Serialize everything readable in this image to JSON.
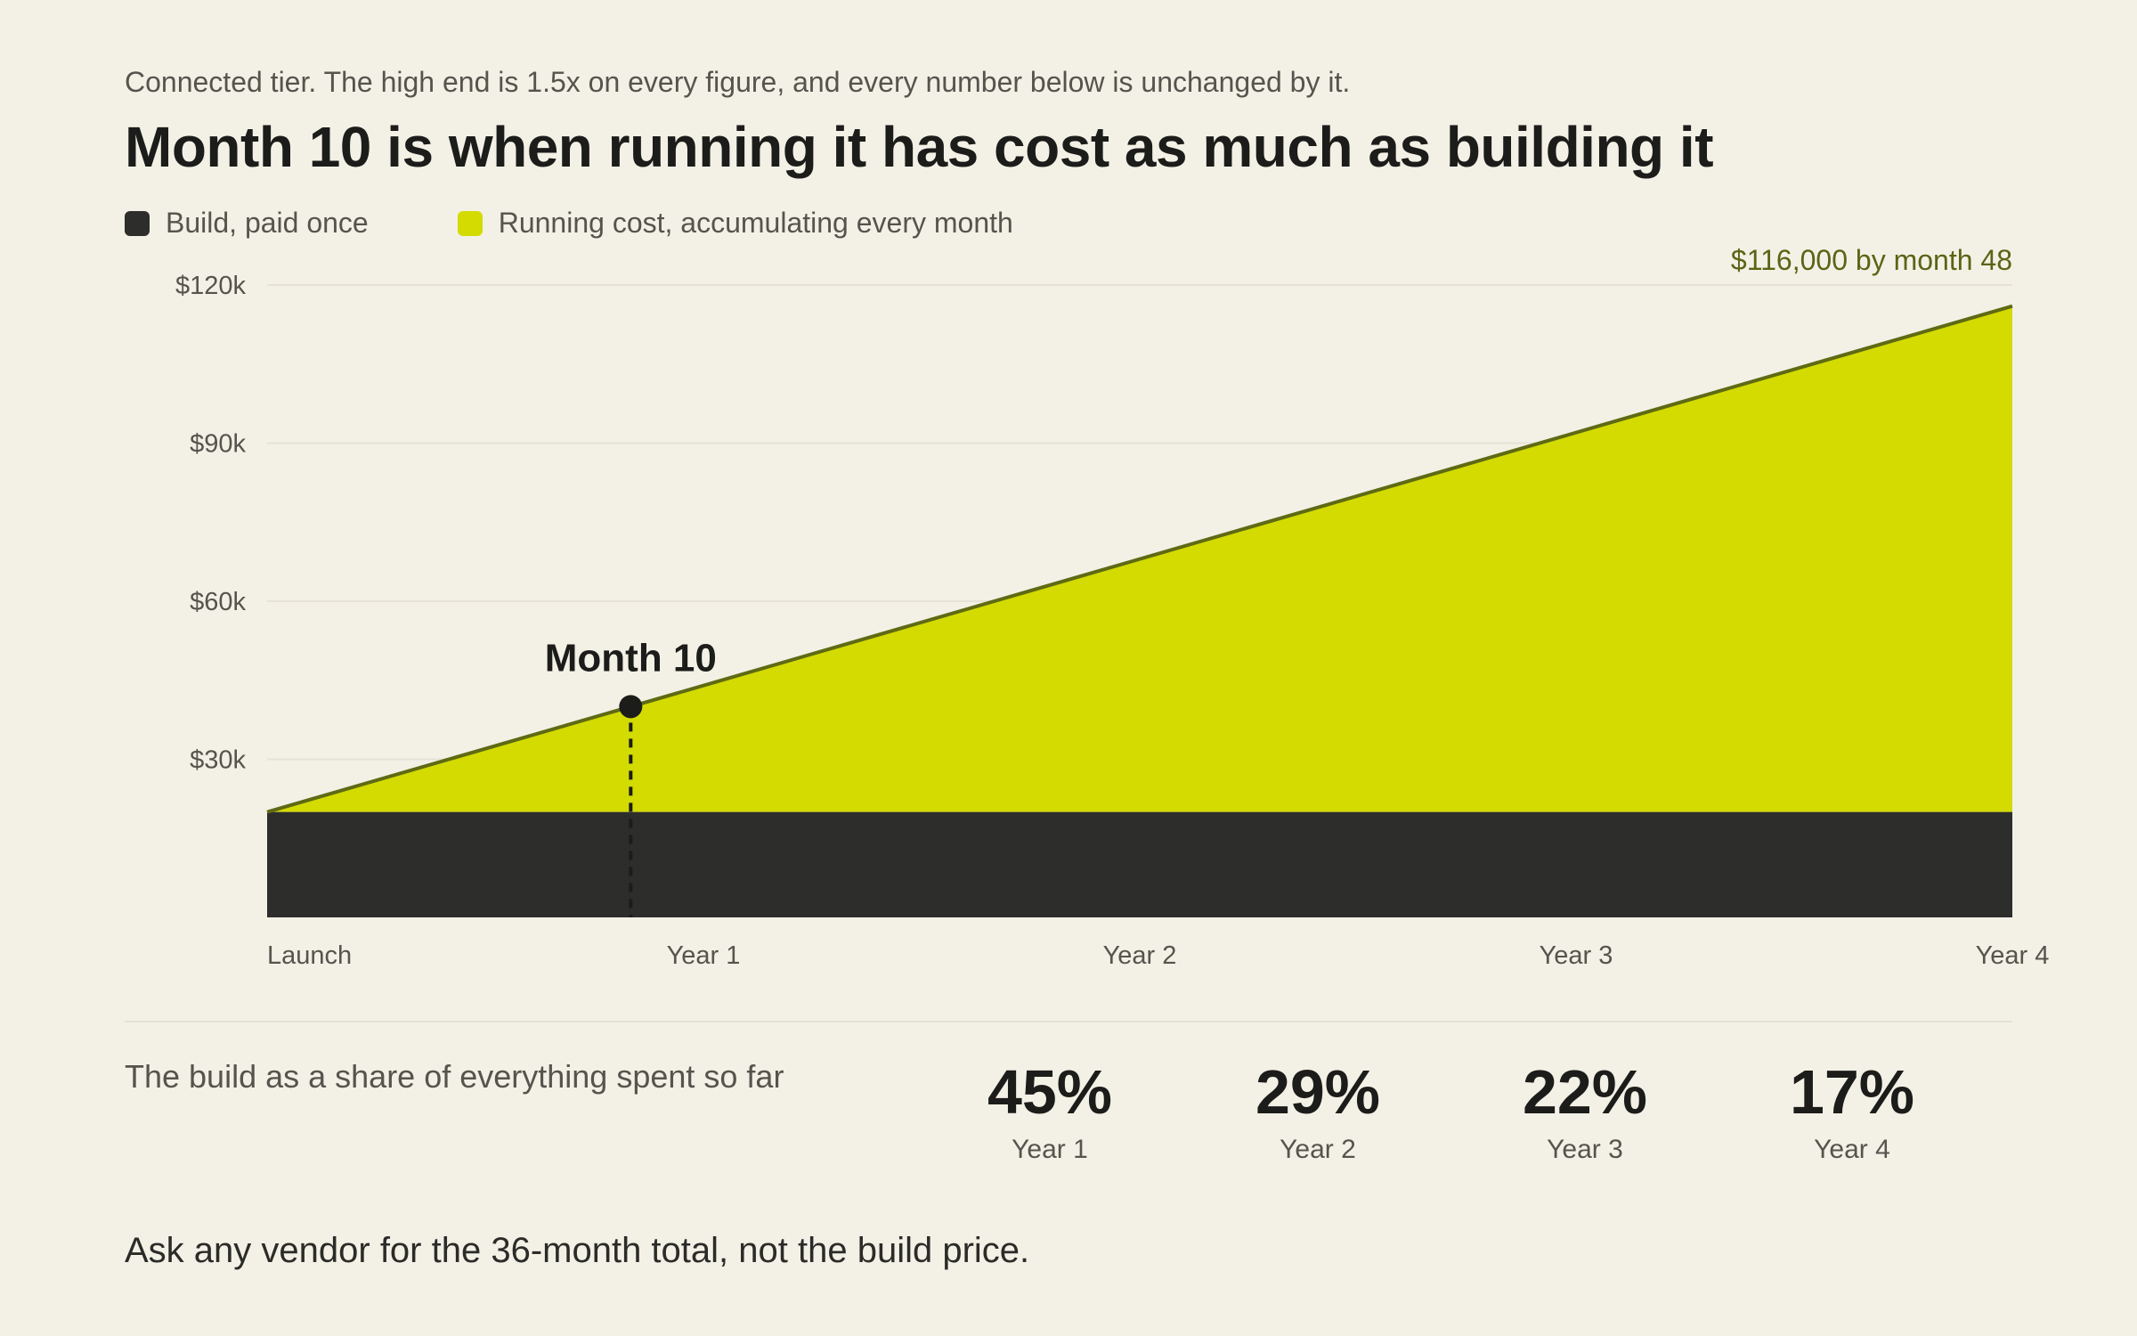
{
  "kicker": "Connected tier. The high end is 1.5x on every figure, and every number below is unchanged by it.",
  "title": "Month 10 is when running it has cost as much as building it",
  "legend": [
    {
      "label": "Build, paid once",
      "color": "#2d2d2b"
    },
    {
      "label": "Running cost, accumulating every month",
      "color": "#d3db00"
    }
  ],
  "chart_data": {
    "type": "area",
    "x_unit": "month",
    "xlim": [
      0,
      48
    ],
    "ylim": [
      0,
      120000
    ],
    "y_ticks": [
      {
        "value": 30000,
        "label": "$30k"
      },
      {
        "value": 60000,
        "label": "$60k"
      },
      {
        "value": 90000,
        "label": "$90k"
      },
      {
        "value": 120000,
        "label": "$120k"
      }
    ],
    "x_ticks": [
      {
        "value": 0,
        "label": "Launch"
      },
      {
        "value": 12,
        "label": "Year 1"
      },
      {
        "value": 24,
        "label": "Year 2"
      },
      {
        "value": 36,
        "label": "Year 3"
      },
      {
        "value": 48,
        "label": "Year 4"
      }
    ],
    "series": [
      {
        "name": "Build, paid once",
        "color": "#2d2d2b",
        "x": [
          0,
          48
        ],
        "y": [
          20000,
          20000
        ]
      },
      {
        "name": "Running cost, accumulating every month",
        "color": "#d3db00",
        "line_color": "#5f6a14",
        "x": [
          0,
          10,
          48
        ],
        "y": [
          20000,
          40000,
          116000
        ]
      }
    ],
    "annotations": [
      {
        "label": "Month 10",
        "x": 10,
        "y": 40000
      },
      {
        "label": "$116,000 by month 48",
        "x": 48,
        "y": 116000
      }
    ],
    "grid": true,
    "legend_position": "top-left"
  },
  "share": {
    "caption": "The build as a share of everything spent so far",
    "stats": [
      {
        "value": "45%",
        "label": "Year 1"
      },
      {
        "value": "29%",
        "label": "Year 2"
      },
      {
        "value": "22%",
        "label": "Year 3"
      },
      {
        "value": "17%",
        "label": "Year 4"
      }
    ]
  },
  "footer": "Ask any vendor for the 36-month total, not the build price."
}
